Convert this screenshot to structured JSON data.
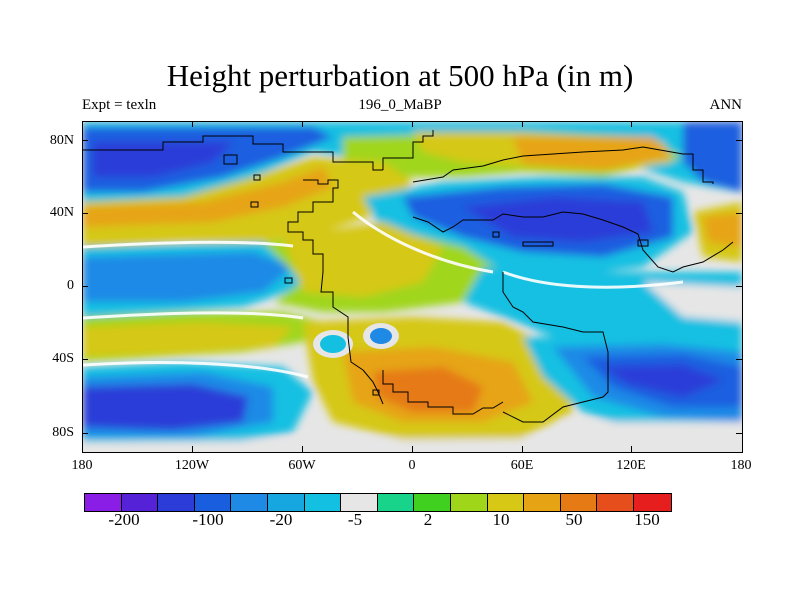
{
  "title": "Height perturbation at 500 hPa (in m)",
  "subtitle_left": "Expt = texln",
  "subtitle_center": "196_0_MaBP",
  "subtitle_right": "ANN",
  "map": {
    "projection": "cylindrical equidistant",
    "lat_labels": [
      "80N",
      "40N",
      "0",
      "40S",
      "80S"
    ],
    "lon_labels": [
      "180",
      "120W",
      "60W",
      "0",
      "60E",
      "120E",
      "180"
    ]
  },
  "colorbar": {
    "colors": [
      "#8a1ee6",
      "#5522d8",
      "#2b3cd8",
      "#1a5ee0",
      "#1e8ae6",
      "#16a6e0",
      "#14c0e2",
      "#e6e6e6",
      "#18d48a",
      "#40d020",
      "#a0d61a",
      "#d6c814",
      "#e6a414",
      "#e67a14",
      "#e64e1c",
      "#e61e1e"
    ],
    "labels": [
      "-200",
      "-100",
      "-20",
      "-5",
      "2",
      "10",
      "50",
      "150"
    ]
  }
}
